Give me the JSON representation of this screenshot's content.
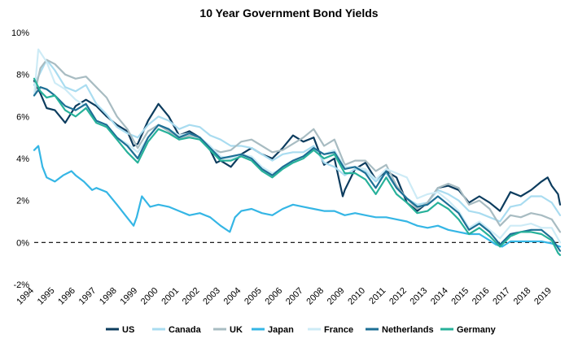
{
  "chart_data": {
    "type": "line",
    "title": "10 Year Government Bond Yields",
    "xlabel": "",
    "ylabel": "",
    "x_range": [
      1994.0,
      2019.4
    ],
    "ylim": [
      -2,
      10
    ],
    "y_ticks": [
      "-2%",
      "0%",
      "2%",
      "4%",
      "6%",
      "8%",
      "10%"
    ],
    "y_tick_values": [
      -2,
      0,
      2,
      4,
      6,
      8,
      10
    ],
    "x_ticks": [
      "1994",
      "1995",
      "1996",
      "1997",
      "1998",
      "1999",
      "2000",
      "2001",
      "2002",
      "2003",
      "2004",
      "2005",
      "2006",
      "2007",
      "2008",
      "2009",
      "2010",
      "2011",
      "2012",
      "2013",
      "2014",
      "2015",
      "2016",
      "2017",
      "2018",
      "2019"
    ],
    "x_tick_values": [
      1994,
      1995,
      1996,
      1997,
      1998,
      1999,
      2000,
      2001,
      2002,
      2003,
      2004,
      2005,
      2006,
      2007,
      2008,
      2009,
      2010,
      2011,
      2012,
      2013,
      2014,
      2015,
      2016,
      2017,
      2018,
      2019
    ],
    "zero_line": "dashed",
    "grid": false,
    "legend_position": "bottom",
    "series": [
      {
        "name": "US",
        "color": "#0c3c5e",
        "x": [
          1994.0,
          1994.3,
          1994.6,
          1995.0,
          1995.5,
          1996.0,
          1996.5,
          1997.0,
          1997.5,
          1998.0,
          1998.5,
          1998.8,
          1999.0,
          1999.5,
          2000.0,
          2000.5,
          2001.0,
          2001.5,
          2002.0,
          2002.5,
          2002.8,
          2003.0,
          2003.5,
          2004.0,
          2004.5,
          2005.0,
          2005.5,
          2006.0,
          2006.5,
          2007.0,
          2007.5,
          2008.0,
          2008.5,
          2008.9,
          2009.0,
          2009.5,
          2010.0,
          2010.5,
          2011.0,
          2011.5,
          2012.0,
          2012.5,
          2013.0,
          2013.5,
          2014.0,
          2014.5,
          2015.0,
          2015.5,
          2016.0,
          2016.5,
          2017.0,
          2017.5,
          2018.0,
          2018.5,
          2018.8,
          2019.0,
          2019.3,
          2019.4
        ],
        "y": [
          7.7,
          7.1,
          6.4,
          6.3,
          5.7,
          6.5,
          6.8,
          6.5,
          6.0,
          5.6,
          5.3,
          4.6,
          4.7,
          5.8,
          6.6,
          6.0,
          5.1,
          5.3,
          5.0,
          4.4,
          3.8,
          3.9,
          3.6,
          4.2,
          4.5,
          4.2,
          4.0,
          4.5,
          5.1,
          4.8,
          5.0,
          3.7,
          4.0,
          2.2,
          2.5,
          3.5,
          3.8,
          3.0,
          3.4,
          3.1,
          1.9,
          1.5,
          1.9,
          2.6,
          2.7,
          2.5,
          1.9,
          2.2,
          1.9,
          1.5,
          2.4,
          2.2,
          2.5,
          2.9,
          3.1,
          2.7,
          2.3,
          1.8
        ]
      },
      {
        "name": "Canada",
        "color": "#a9dcf0",
        "x": [
          1994.0,
          1994.3,
          1994.6,
          1995.0,
          1995.5,
          1996.0,
          1996.5,
          1997.0,
          1997.5,
          1998.0,
          1998.5,
          1999.0,
          1999.5,
          2000.0,
          2000.5,
          2001.0,
          2001.5,
          2002.0,
          2002.5,
          2003.0,
          2003.5,
          2004.0,
          2004.5,
          2005.0,
          2005.5,
          2006.0,
          2006.5,
          2007.0,
          2007.5,
          2008.0,
          2008.5,
          2009.0,
          2009.5,
          2010.0,
          2010.5,
          2011.0,
          2011.5,
          2012.0,
          2012.5,
          2013.0,
          2013.5,
          2014.0,
          2014.5,
          2015.0,
          2015.5,
          2016.0,
          2016.5,
          2017.0,
          2017.5,
          2018.0,
          2018.5,
          2019.0,
          2019.4
        ],
        "y": [
          7.5,
          8.1,
          8.7,
          8.2,
          7.4,
          7.2,
          7.5,
          6.6,
          6.1,
          5.5,
          5.2,
          5.0,
          5.6,
          6.0,
          5.8,
          5.4,
          5.6,
          5.5,
          5.1,
          4.9,
          4.6,
          4.6,
          4.5,
          4.2,
          3.9,
          4.2,
          4.3,
          4.3,
          4.6,
          3.8,
          3.6,
          3.2,
          3.5,
          3.4,
          2.9,
          3.3,
          2.6,
          2.1,
          1.8,
          1.9,
          2.5,
          2.3,
          2.0,
          1.5,
          1.4,
          1.2,
          1.0,
          1.7,
          1.8,
          2.2,
          2.2,
          1.9,
          1.3
        ]
      },
      {
        "name": "UK",
        "color": "#a8bcc2",
        "x": [
          1994.0,
          1994.3,
          1994.6,
          1995.0,
          1995.5,
          1996.0,
          1996.5,
          1997.0,
          1997.5,
          1998.0,
          1998.5,
          1999.0,
          1999.5,
          2000.0,
          2000.5,
          2001.0,
          2001.5,
          2002.0,
          2002.5,
          2003.0,
          2003.5,
          2004.0,
          2004.5,
          2005.0,
          2005.5,
          2006.0,
          2006.5,
          2007.0,
          2007.5,
          2008.0,
          2008.5,
          2009.0,
          2009.5,
          2010.0,
          2010.5,
          2011.0,
          2011.5,
          2012.0,
          2012.5,
          2013.0,
          2013.5,
          2014.0,
          2014.5,
          2015.0,
          2015.5,
          2016.0,
          2016.5,
          2017.0,
          2017.5,
          2018.0,
          2018.5,
          2019.0,
          2019.4
        ],
        "y": [
          7.0,
          8.3,
          8.7,
          8.5,
          8.0,
          7.8,
          7.9,
          7.4,
          6.9,
          6.0,
          5.4,
          4.5,
          5.3,
          5.6,
          5.3,
          4.9,
          5.1,
          5.0,
          4.5,
          4.3,
          4.4,
          4.8,
          4.9,
          4.6,
          4.3,
          4.4,
          4.7,
          5.0,
          5.4,
          4.6,
          4.9,
          3.7,
          3.9,
          3.9,
          3.4,
          3.7,
          2.7,
          2.1,
          1.6,
          1.9,
          2.6,
          2.8,
          2.6,
          1.8,
          2.0,
          1.6,
          0.8,
          1.3,
          1.2,
          1.4,
          1.3,
          1.1,
          0.5
        ]
      },
      {
        "name": "Japan",
        "color": "#35b6e5",
        "x": [
          1994.0,
          1994.2,
          1994.4,
          1994.6,
          1995.0,
          1995.4,
          1995.8,
          1996.0,
          1996.4,
          1996.8,
          1997.0,
          1997.5,
          1998.0,
          1998.4,
          1998.8,
          1998.95,
          1999.2,
          1999.6,
          2000.0,
          2000.5,
          2001.0,
          2001.5,
          2002.0,
          2002.5,
          2003.0,
          2003.45,
          2003.7,
          2004.0,
          2004.5,
          2005.0,
          2005.5,
          2006.0,
          2006.5,
          2007.0,
          2007.5,
          2008.0,
          2008.5,
          2009.0,
          2009.5,
          2010.0,
          2010.5,
          2011.0,
          2011.5,
          2012.0,
          2012.5,
          2013.0,
          2013.5,
          2014.0,
          2014.5,
          2015.0,
          2015.5,
          2016.0,
          2016.3,
          2016.6,
          2017.0,
          2017.5,
          2018.0,
          2018.5,
          2019.0,
          2019.4
        ],
        "y": [
          4.4,
          4.6,
          3.6,
          3.1,
          2.9,
          3.2,
          3.4,
          3.2,
          2.9,
          2.5,
          2.6,
          2.4,
          1.8,
          1.3,
          0.8,
          1.2,
          2.2,
          1.7,
          1.8,
          1.7,
          1.5,
          1.3,
          1.4,
          1.2,
          0.8,
          0.5,
          1.2,
          1.5,
          1.6,
          1.4,
          1.3,
          1.6,
          1.8,
          1.7,
          1.6,
          1.5,
          1.5,
          1.3,
          1.4,
          1.3,
          1.2,
          1.2,
          1.1,
          1.0,
          0.8,
          0.7,
          0.8,
          0.6,
          0.5,
          0.4,
          0.4,
          0.1,
          -0.1,
          -0.2,
          0.05,
          0.05,
          0.05,
          0.05,
          -0.05,
          -0.2
        ]
      },
      {
        "name": "France",
        "color": "#cdebf6",
        "x": [
          1994.0,
          1994.2,
          1994.6,
          1995.0,
          1995.5,
          1996.0,
          1996.5,
          1997.0,
          1997.5,
          1998.0,
          1998.5,
          1999.0,
          1999.5,
          2000.0,
          2000.5,
          2001.0,
          2001.5,
          2002.0,
          2002.5,
          2003.0,
          2003.5,
          2004.0,
          2004.5,
          2005.0,
          2005.5,
          2006.0,
          2006.5,
          2007.0,
          2007.5,
          2008.0,
          2008.5,
          2009.0,
          2009.5,
          2010.0,
          2010.5,
          2011.0,
          2011.5,
          2012.0,
          2012.5,
          2013.0,
          2013.5,
          2014.0,
          2014.5,
          2015.0,
          2015.5,
          2016.0,
          2016.5,
          2017.0,
          2017.5,
          2018.0,
          2018.5,
          2019.0,
          2019.4
        ],
        "y": [
          7.0,
          9.2,
          8.6,
          7.6,
          7.3,
          6.8,
          6.5,
          5.8,
          5.6,
          5.0,
          4.7,
          4.3,
          5.0,
          5.6,
          5.4,
          5.1,
          5.2,
          5.0,
          4.6,
          4.1,
          4.0,
          4.2,
          4.1,
          3.6,
          3.3,
          3.5,
          3.9,
          4.1,
          4.5,
          4.2,
          4.4,
          3.6,
          3.6,
          3.5,
          3.0,
          3.5,
          3.3,
          3.1,
          2.1,
          2.3,
          2.4,
          2.0,
          1.5,
          0.7,
          1.0,
          0.6,
          0.2,
          0.8,
          0.8,
          0.9,
          0.7,
          0.7,
          0.0
        ]
      },
      {
        "name": "Netherlands",
        "color": "#1d6f95",
        "x": [
          1994.0,
          1994.3,
          1994.6,
          1995.0,
          1995.5,
          1996.0,
          1996.5,
          1997.0,
          1997.5,
          1998.0,
          1998.5,
          1999.0,
          1999.5,
          2000.0,
          2000.5,
          2001.0,
          2001.5,
          2002.0,
          2002.5,
          2003.0,
          2003.5,
          2004.0,
          2004.5,
          2005.0,
          2005.5,
          2006.0,
          2006.5,
          2007.0,
          2007.5,
          2008.0,
          2008.5,
          2009.0,
          2009.5,
          2010.0,
          2010.5,
          2011.0,
          2011.5,
          2012.0,
          2012.5,
          2013.0,
          2013.5,
          2014.0,
          2014.5,
          2015.0,
          2015.5,
          2016.0,
          2016.5,
          2017.0,
          2017.5,
          2018.0,
          2018.5,
          2019.0,
          2019.4
        ],
        "y": [
          7.0,
          7.4,
          7.3,
          7.0,
          6.5,
          6.3,
          6.6,
          5.8,
          5.6,
          5.0,
          4.6,
          4.0,
          5.0,
          5.6,
          5.4,
          5.0,
          5.2,
          5.0,
          4.5,
          4.0,
          4.1,
          4.2,
          4.0,
          3.5,
          3.2,
          3.6,
          3.9,
          4.1,
          4.5,
          4.2,
          4.3,
          3.5,
          3.6,
          3.3,
          2.6,
          3.4,
          2.6,
          2.1,
          1.7,
          1.8,
          2.2,
          1.8,
          1.4,
          0.6,
          0.9,
          0.5,
          -0.1,
          0.4,
          0.5,
          0.6,
          0.6,
          0.2,
          -0.4
        ]
      },
      {
        "name": "Germany",
        "color": "#27b19a",
        "x": [
          1994.0,
          1994.3,
          1994.6,
          1995.0,
          1995.5,
          1996.0,
          1996.5,
          1997.0,
          1997.5,
          1998.0,
          1998.5,
          1999.0,
          1999.5,
          2000.0,
          2000.5,
          2001.0,
          2001.5,
          2002.0,
          2002.5,
          2003.0,
          2003.5,
          2004.0,
          2004.5,
          2005.0,
          2005.5,
          2006.0,
          2006.5,
          2007.0,
          2007.5,
          2008.0,
          2008.5,
          2009.0,
          2009.5,
          2010.0,
          2010.5,
          2011.0,
          2011.5,
          2012.0,
          2012.5,
          2013.0,
          2013.5,
          2014.0,
          2014.5,
          2015.0,
          2015.5,
          2016.0,
          2016.5,
          2017.0,
          2017.5,
          2018.0,
          2018.5,
          2019.0,
          2019.3,
          2019.4
        ],
        "y": [
          7.8,
          7.2,
          6.9,
          7.0,
          6.3,
          6.0,
          6.4,
          5.7,
          5.5,
          4.9,
          4.3,
          3.8,
          4.8,
          5.4,
          5.2,
          4.9,
          5.0,
          4.9,
          4.4,
          3.9,
          3.9,
          4.1,
          3.9,
          3.4,
          3.1,
          3.5,
          3.8,
          4.0,
          4.4,
          4.0,
          4.2,
          3.3,
          3.3,
          3.0,
          2.3,
          3.1,
          2.3,
          1.9,
          1.4,
          1.5,
          1.9,
          1.6,
          1.1,
          0.4,
          0.7,
          0.3,
          -0.2,
          0.3,
          0.5,
          0.5,
          0.4,
          0.1,
          -0.5,
          -0.6
        ]
      }
    ]
  }
}
